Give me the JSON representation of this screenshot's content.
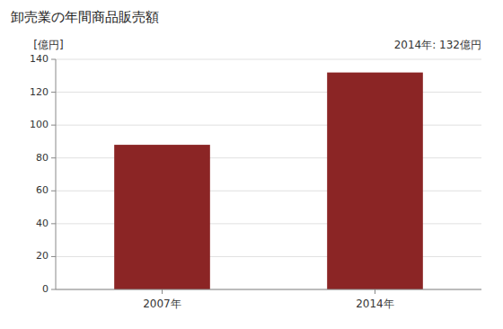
{
  "chart_data": {
    "type": "bar",
    "title": "卸売業の年間商品販売額",
    "ylabel": "[億円]",
    "categories": [
      "2007年",
      "2014年"
    ],
    "values": [
      88,
      132
    ],
    "color": "#8B2525",
    "annotation": "2014年: 132億円",
    "ylim": [
      0,
      140
    ],
    "yticks": [
      0,
      20,
      40,
      60,
      80,
      100,
      120,
      140
    ],
    "grid": true
  }
}
